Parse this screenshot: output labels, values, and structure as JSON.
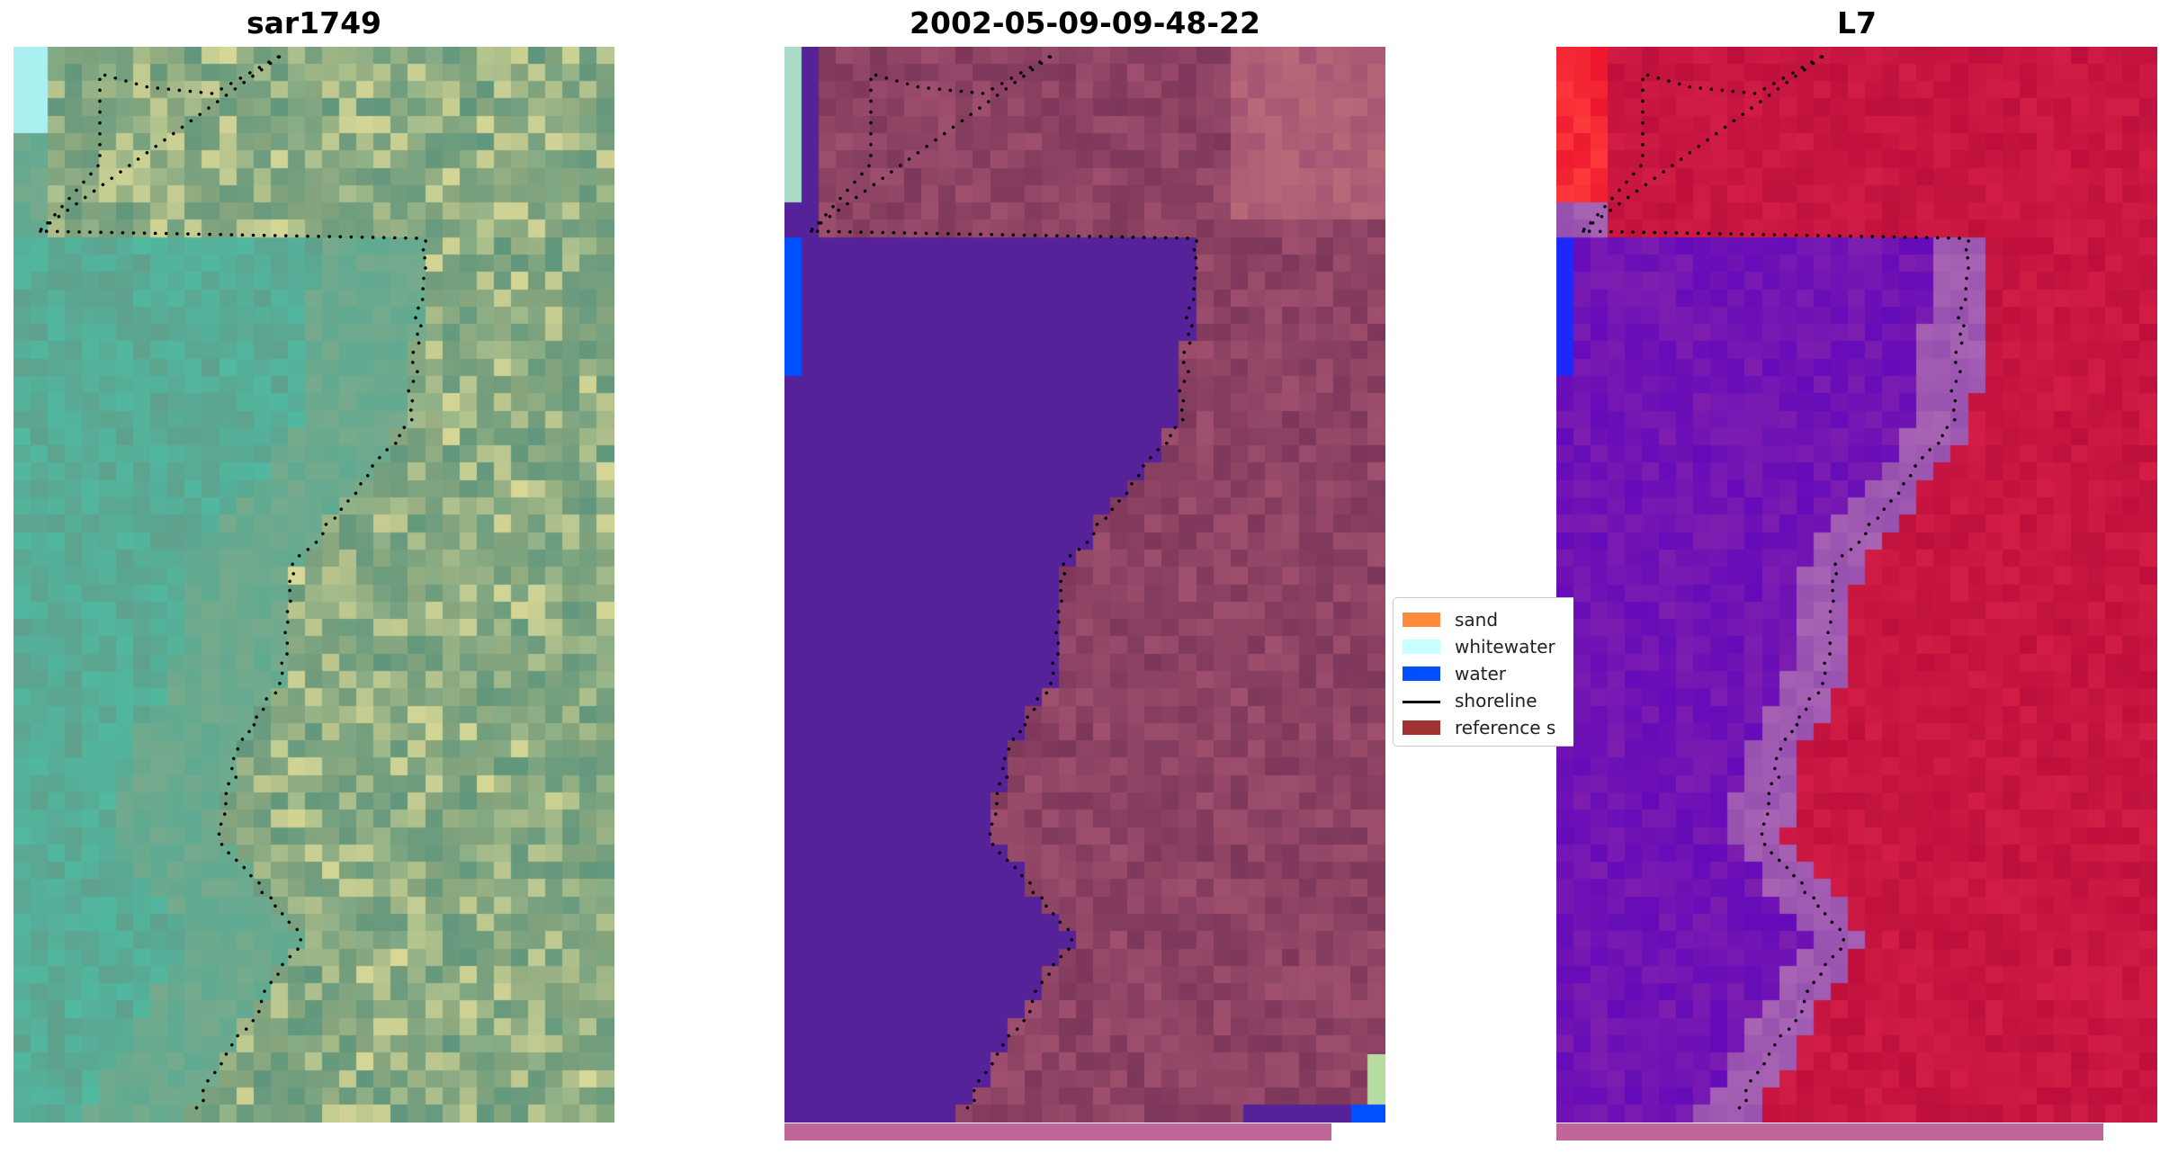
{
  "panels": [
    {
      "title": "sar1749"
    },
    {
      "title": "2002-05-09-09-48-22"
    },
    {
      "title": "L7"
    }
  ],
  "legend": {
    "items": [
      {
        "label": "sand",
        "color": "#ff8c3c",
        "kind": "patch"
      },
      {
        "label": "whitewater",
        "color": "#c8ffff",
        "kind": "patch"
      },
      {
        "label": "water",
        "color": "#0050ff",
        "kind": "patch"
      },
      {
        "label": "shoreline",
        "color": "#000000",
        "kind": "line"
      },
      {
        "label": "reference s",
        "color": "#a03232",
        "kind": "patch"
      }
    ]
  },
  "colors": {
    "water_class": "#55229a",
    "land_overlay": "#8a3a60",
    "strip": "#c0669a",
    "ndwi_land": "#c8103c",
    "ndwi_water": "#6a0cb8"
  }
}
